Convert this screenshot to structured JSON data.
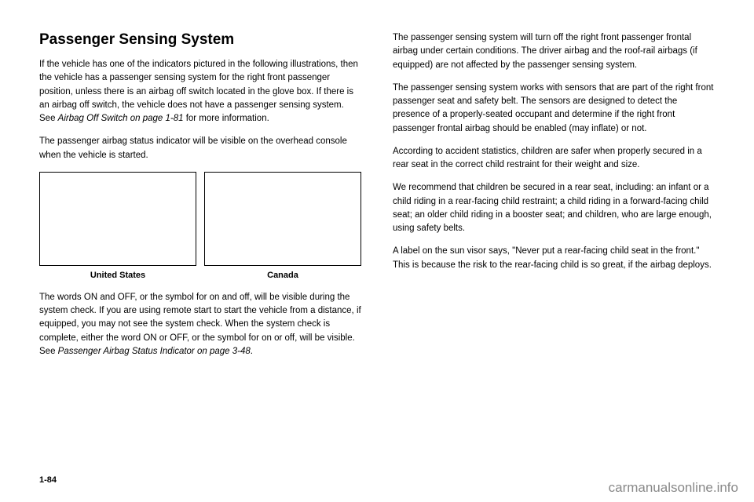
{
  "left": {
    "heading": "Passenger Sensing System",
    "p1_a": "If the vehicle has one of the indicators pictured in the following illustrations, then the vehicle has a passenger sensing system for the right front passenger position, unless there is an airbag off switch located in the glove box. If there is an airbag off switch, the vehicle does not have a passenger sensing system. See ",
    "p1_link": "Airbag Off Switch on page 1-81",
    "p1_b": " for more information.",
    "p2": "The passenger airbag status indicator will be visible on the overhead console when the vehicle is started.",
    "caption1": "United States",
    "caption2": "Canada",
    "p3_a": "The words ON and OFF, or the symbol for on and off, will be visible during the system check. If you are using remote start to start the vehicle from a distance, if equipped, you may not see the system check. When the system check is complete, either the word ON or OFF, or the symbol for on or off, will be visible. See ",
    "p3_link": "Passenger Airbag Status Indicator on page 3-48",
    "p3_b": "."
  },
  "right": {
    "p1": "The passenger sensing system will turn off the right front passenger frontal airbag under certain conditions. The driver airbag and the roof-rail airbags (if equipped) are not affected by the passenger sensing system.",
    "p2": "The passenger sensing system works with sensors that are part of the right front passenger seat and safety belt. The sensors are designed to detect the presence of a properly-seated occupant and determine if the right front passenger frontal airbag should be enabled (may inflate) or not.",
    "p3": "According to accident statistics, children are safer when properly secured in a rear seat in the correct child restraint for their weight and size.",
    "p4": "We recommend that children be secured in a rear seat, including: an infant or a child riding in a rear-facing child restraint; a child riding in a forward-facing child seat; an older child riding in a booster seat; and children, who are large enough, using safety belts.",
    "p5": "A label on the sun visor says, \"Never put a rear-facing child seat in the front.\" This is because the risk to the rear-facing child is so great, if the airbag deploys."
  },
  "pageNumber": "1-84",
  "watermark": "carmanualsonline.info"
}
